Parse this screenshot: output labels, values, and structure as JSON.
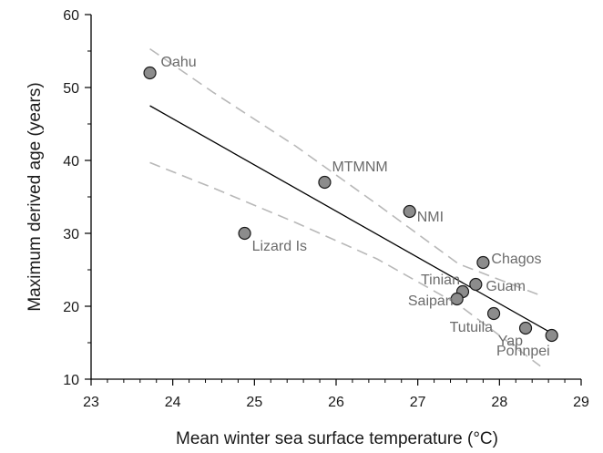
{
  "chart_data": {
    "type": "scatter",
    "xlabel": "Mean winter sea surface temperature (°C)",
    "ylabel": "Maximum derived age (years)",
    "xlim": [
      23,
      29
    ],
    "ylim": [
      10,
      60
    ],
    "x_ticks": [
      23,
      24,
      25,
      26,
      27,
      28,
      29
    ],
    "y_ticks": [
      10,
      20,
      30,
      40,
      50,
      60
    ],
    "grid": false,
    "points": [
      {
        "label": "Oahu",
        "x": 23.72,
        "y": 52
      },
      {
        "label": "Lizard Is",
        "x": 24.88,
        "y": 30
      },
      {
        "label": "MTMNM",
        "x": 25.86,
        "y": 37
      },
      {
        "label": "NMI",
        "x": 26.9,
        "y": 33
      },
      {
        "label": "Chagos",
        "x": 27.8,
        "y": 26
      },
      {
        "label": "Guam",
        "x": 27.71,
        "y": 23
      },
      {
        "label": "Tinian",
        "x": 27.55,
        "y": 22
      },
      {
        "label": "Saipan",
        "x": 27.48,
        "y": 21
      },
      {
        "label": "Tutuila",
        "x": 27.93,
        "y": 19
      },
      {
        "label": "Yap",
        "x": 28.32,
        "y": 17
      },
      {
        "label": "Pohnpei",
        "x": 28.64,
        "y": 16
      }
    ],
    "regression_line": {
      "x": [
        23.72,
        28.64
      ],
      "y": [
        47.5,
        16.3
      ]
    },
    "confidence_upper": {
      "x": [
        23.72,
        24.5,
        25.5,
        26.5,
        27.5,
        28.5
      ],
      "y": [
        55.3,
        49.3,
        42.0,
        34.0,
        25.8,
        21.5
      ]
    },
    "confidence_lower": {
      "x": [
        23.72,
        24.5,
        25.5,
        26.5,
        27.5,
        28.5
      ],
      "y": [
        39.7,
        36.2,
        31.5,
        26.5,
        20.2,
        11.8
      ]
    }
  },
  "colors": {
    "marker_fill": "#8c8c8c",
    "marker_stroke": "#1a1a1a",
    "regression": "#000000",
    "confidence": "#b8b8b8",
    "point_label": "#6b6b6b",
    "axis": "#000000"
  }
}
